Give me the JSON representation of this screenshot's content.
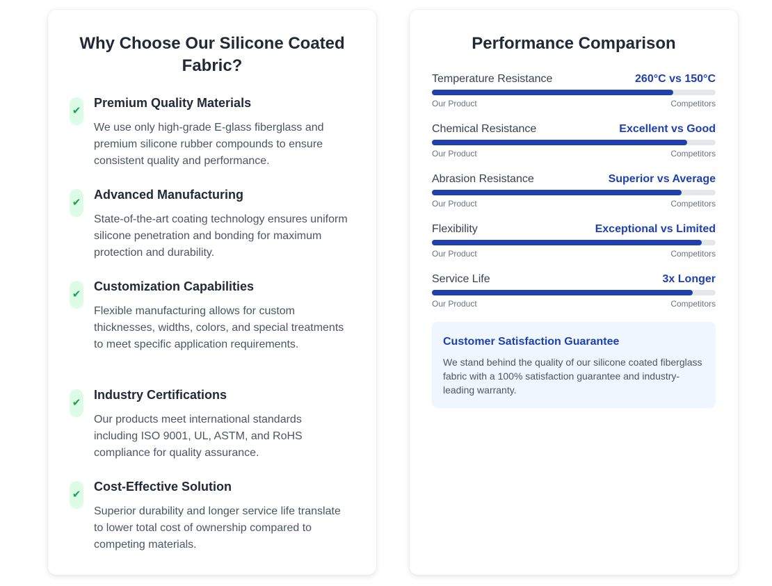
{
  "left": {
    "title": "Why Choose Our Silicone Coated Fabric?",
    "features": [
      {
        "title": "Premium Quality Materials",
        "desc": "We use only high-grade E-glass fiberglass and premium silicone rubber compounds to ensure consistent quality and performance."
      },
      {
        "title": "Advanced Manufacturing",
        "desc": "State-of-the-art coating technology ensures uniform silicone penetration and bonding for maximum protection and durability."
      },
      {
        "title": "Customization Capabilities",
        "desc": "Flexible manufacturing allows for custom thicknesses, widths, colors, and special treatments to meet specific application requirements."
      },
      {
        "title": "Industry Certifications",
        "desc": "Our products meet international standards including ISO 9001, UL, ASTM, and RoHS compliance for quality assurance."
      },
      {
        "title": "Cost-Effective Solution",
        "desc": "Superior durability and longer service life translate to lower total cost of ownership compared to competing materials."
      }
    ],
    "check_icon": "✔"
  },
  "right": {
    "title": "Performance Comparison",
    "rows": [
      {
        "label": "Temperature Resistance",
        "value": "260°C vs 150°C",
        "percent": 85
      },
      {
        "label": "Chemical Resistance",
        "value": "Excellent vs Good",
        "percent": 90
      },
      {
        "label": "Abrasion Resistance",
        "value": "Superior vs Average",
        "percent": 88
      },
      {
        "label": "Flexibility",
        "value": "Exceptional vs Limited",
        "percent": 95
      },
      {
        "label": "Service Life",
        "value": "3x Longer",
        "percent": 92
      }
    ],
    "our_label": "Our Product",
    "comp_label": "Competitors",
    "guarantee": {
      "title": "Customer Satisfaction Guarantee",
      "text": "We stand behind the quality of our silicone coated fiberglass fabric with a 100% satisfaction guarantee and industry-leading warranty."
    }
  },
  "colors": {
    "accent": "#1e40af",
    "check": "#16a34a"
  }
}
